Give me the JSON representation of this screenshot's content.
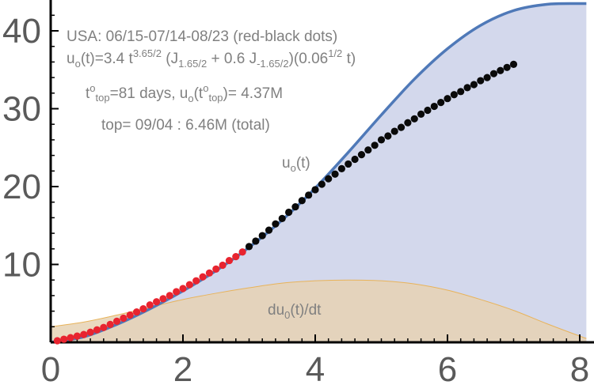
{
  "chart_data": {
    "type": "area",
    "xlim": [
      0,
      8.1
    ],
    "ylim": [
      0,
      43.5
    ],
    "x_ticks": [
      0,
      2,
      4,
      6,
      8
    ],
    "y_ticks": [
      10,
      20,
      30,
      40
    ],
    "x_tick_labels": [
      "0",
      "2",
      "4",
      "6",
      "8"
    ],
    "y_tick_labels": [
      "10",
      "20",
      "30",
      "40"
    ],
    "grid": false,
    "colors": {
      "uo_line": "#4f79b8",
      "uo_fill": "#d3d8ec",
      "du_fill": "#e6d2b4",
      "du_line": "#e8b35a",
      "red_dots": "#e8242f",
      "black_dots": "#0a0a0a",
      "text": "#808080",
      "ticks": "#5a5a5a"
    },
    "curve_uo": {
      "x": [
        0,
        0.5,
        1,
        1.5,
        2,
        2.5,
        3,
        3.5,
        4,
        4.5,
        5,
        5.5,
        6,
        6.5,
        7,
        7.5,
        8,
        8.1
      ],
      "y": [
        0,
        0.7,
        2.3,
        4.3,
        6.6,
        9.2,
        12.2,
        15.7,
        19.8,
        24.4,
        29.2,
        33.8,
        37.7,
        40.7,
        42.6,
        43.4,
        43.5,
        43.5
      ]
    },
    "curve_du": {
      "x": [
        0,
        0.5,
        1,
        1.5,
        2,
        2.5,
        3,
        3.5,
        4,
        4.5,
        5,
        5.5,
        6,
        6.5,
        7,
        7.5,
        8,
        8.1
      ],
      "y": [
        2.0,
        2.6,
        3.5,
        4.5,
        5.5,
        6.3,
        7.0,
        7.6,
        7.9,
        8.0,
        7.9,
        7.5,
        6.7,
        5.5,
        4.1,
        2.4,
        0.8,
        0.5
      ]
    },
    "red_dots": {
      "x": [
        0.1,
        0.2,
        0.3,
        0.4,
        0.5,
        0.6,
        0.7,
        0.8,
        0.9,
        1.0,
        1.1,
        1.2,
        1.3,
        1.4,
        1.5,
        1.6,
        1.7,
        1.8,
        1.9,
        2.0,
        2.1,
        2.2,
        2.3,
        2.4,
        2.5,
        2.6,
        2.7,
        2.8,
        2.9
      ],
      "y": [
        0.2,
        0.4,
        0.6,
        0.8,
        1.0,
        1.3,
        1.6,
        1.9,
        2.3,
        2.7,
        3.1,
        3.5,
        3.9,
        4.3,
        4.8,
        5.2,
        5.6,
        6.0,
        6.5,
        6.9,
        7.4,
        7.9,
        8.4,
        8.9,
        9.4,
        9.9,
        10.5,
        11.0,
        11.6
      ]
    },
    "black_dots": {
      "x": [
        3.0,
        3.1,
        3.2,
        3.3,
        3.4,
        3.5,
        3.6,
        3.7,
        3.8,
        3.9,
        4.0,
        4.1,
        4.2,
        4.3,
        4.4,
        4.5,
        4.6,
        4.7,
        4.8,
        4.9,
        5.0,
        5.1,
        5.2,
        5.3,
        5.4,
        5.5,
        5.6,
        5.7,
        5.8,
        5.9,
        6.0,
        6.1,
        6.2,
        6.3,
        6.4,
        6.5,
        6.6,
        6.7,
        6.8,
        6.9,
        7.0
      ],
      "y": [
        12.3,
        13.0,
        13.7,
        14.4,
        15.2,
        15.9,
        16.7,
        17.4,
        18.2,
        18.9,
        19.6,
        20.3,
        21.0,
        21.6,
        22.3,
        22.9,
        23.5,
        24.1,
        24.7,
        25.3,
        26.0,
        26.5,
        27.1,
        27.6,
        28.2,
        28.7,
        29.3,
        29.8,
        30.3,
        30.8,
        31.3,
        31.8,
        32.2,
        32.7,
        33.1,
        33.6,
        34.0,
        34.5,
        34.9,
        35.3,
        35.7
      ]
    },
    "annotations": {
      "line1": "USA:  06/15-07/14-08/23  (red-black dots)",
      "line2_a": "u",
      "line2_b": "o",
      "line2_c": "(t)=3.4 t",
      "line2_d": "3.65/2",
      "line2_e": " (J",
      "line2_f": "1.65/2",
      "line2_g": " + 0.6 J",
      "line2_h": "-1.65/2",
      "line2_i": ")(0.06",
      "line2_j": "1/2",
      "line2_k": " t)",
      "line3_a": "t",
      "line3_b": "o",
      "line3_c": "top",
      "line3_d": "=81 days, u",
      "line3_e": "o",
      "line3_f": "(t",
      "line3_g": "o",
      "line3_h": "top",
      "line3_i": ")= 4.37M",
      "line4": "top= 09/04 : 6.46M (total)",
      "uo_label_a": "u",
      "uo_label_b": "o",
      "uo_label_c": "(t)",
      "du_label_a": "du",
      "du_label_b": "0",
      "du_label_c": "(t)/dt"
    }
  }
}
